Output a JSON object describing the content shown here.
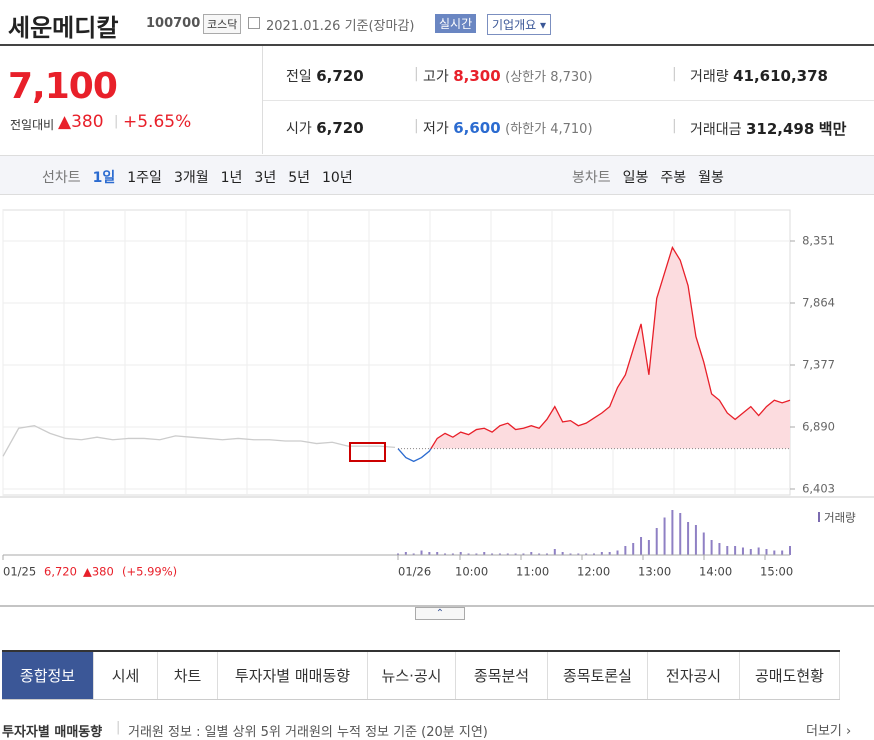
{
  "header": {
    "name": "세운메디칼",
    "code": "100700",
    "market": "코스닥",
    "date": "2021.01.26 기준(장마감)",
    "realtime": "실시간",
    "company_info": "기업개요"
  },
  "price": {
    "current": "7,100",
    "change_label": "전일대비",
    "change": "▲380",
    "rate": "+5.65%"
  },
  "stats": [
    {
      "label": "전일",
      "value": "6,720"
    },
    {
      "label": "고가",
      "value": "8,300",
      "sub_label": "상한가",
      "sub_value": "8,730"
    },
    {
      "label": "거래량",
      "value": "41,610,378"
    },
    {
      "label": "시가",
      "value": "6,720"
    },
    {
      "label": "저가",
      "value": "6,600",
      "sub_label": "하한가",
      "sub_value": "4,710"
    },
    {
      "label": "거래대금",
      "value": "312,498",
      "unit": "백만"
    }
  ],
  "chart_tabs": {
    "line_label": "선차트",
    "periods": [
      "1일",
      "1주일",
      "3개월",
      "1년",
      "3년",
      "5년",
      "10년"
    ],
    "candle_label": "봉차트",
    "candles": [
      "일봉",
      "주봉",
      "월봉"
    ]
  },
  "chart": {
    "type": "line",
    "ylim": [
      6403,
      8351
    ],
    "yticks": [
      {
        "value": 8351,
        "label": "8,351"
      },
      {
        "value": 7864,
        "label": "7,864"
      },
      {
        "value": 7377,
        "label": "7,377"
      },
      {
        "value": 6890,
        "label": "6,890"
      },
      {
        "value": 6403,
        "label": "6,403"
      }
    ],
    "prev_close": 6720,
    "previous_day": [
      6660,
      6880,
      6900,
      6840,
      6800,
      6790,
      6810,
      6790,
      6800,
      6800,
      6790,
      6820,
      6810,
      6800,
      6790,
      6800,
      6790,
      6790,
      6780,
      6780,
      6760,
      6770,
      6740,
      6740,
      6740,
      6730
    ],
    "today": [
      6720,
      6650,
      6620,
      6650,
      6700,
      6800,
      6840,
      6810,
      6850,
      6830,
      6870,
      6880,
      6850,
      6900,
      6920,
      6870,
      6880,
      6900,
      6880,
      6950,
      7050,
      6930,
      6940,
      6900,
      6920,
      6960,
      7000,
      7050,
      7200,
      7300,
      7500,
      7700,
      7300,
      7900,
      8100,
      8300,
      8200,
      8000,
      7600,
      7400,
      7150,
      7100,
      7000,
      6950,
      7000,
      7050,
      6980,
      7050,
      7100,
      7080,
      7100
    ],
    "volume_label": "거래량",
    "volume": [
      1,
      2,
      1,
      3,
      2,
      2,
      1,
      1,
      2,
      1,
      1,
      2,
      1,
      1,
      1,
      1,
      1,
      2,
      1,
      1,
      4,
      2,
      1,
      1,
      1,
      1,
      2,
      2,
      3,
      6,
      8,
      12,
      10,
      18,
      25,
      30,
      28,
      22,
      20,
      15,
      10,
      8,
      6,
      6,
      5,
      4,
      5,
      4,
      3,
      3,
      6
    ],
    "xlabels": [
      "01/25",
      "01/26",
      "10:00",
      "11:00",
      "12:00",
      "13:00",
      "14:00",
      "15:00"
    ],
    "prev_summary": {
      "close": "6,720",
      "change": "▲380",
      "rate": "(+5.99%)"
    }
  },
  "nav": [
    "종합정보",
    "시세",
    "차트",
    "투자자별 매매동향",
    "뉴스·공시",
    "종목분석",
    "종목토론실",
    "전자공시",
    "공매도현황"
  ],
  "footer": {
    "title": "투자자별 매매동향",
    "desc": "거래원 정보 : 일별 상위 5위 거래원의 누적 정보 기준 (20분 지연)",
    "more": "더보기"
  }
}
